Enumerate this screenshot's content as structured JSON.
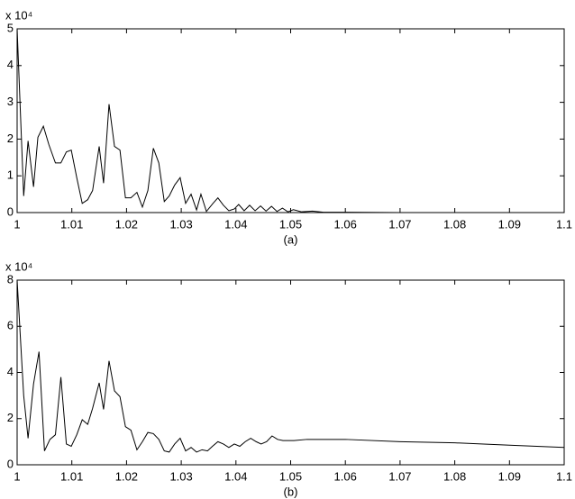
{
  "chart_data": [
    {
      "type": "line",
      "caption": "(a)",
      "multiplier": "x 10⁴",
      "color": "#000000",
      "x": [
        1.0,
        1.0012,
        1.002,
        1.003,
        1.0038,
        1.0048,
        1.0058,
        1.007,
        1.008,
        1.009,
        1.0099,
        1.0109,
        1.0119,
        1.0129,
        1.0138,
        1.015,
        1.0158,
        1.0168,
        1.0178,
        1.0188,
        1.0198,
        1.0208,
        1.0219,
        1.0229,
        1.0239,
        1.0249,
        1.0259,
        1.0269,
        1.0278,
        1.0288,
        1.0298,
        1.0308,
        1.0318,
        1.0328,
        1.0336,
        1.0346,
        1.0358,
        1.0367,
        1.0377,
        1.0387,
        1.0397,
        1.0405,
        1.0415,
        1.0425,
        1.0435,
        1.0445,
        1.0455,
        1.0465,
        1.0475,
        1.0485,
        1.0495,
        1.0505,
        1.052,
        1.054,
        1.056,
        1.06,
        1.07,
        1.08,
        1.09,
        1.1
      ],
      "values": [
        5.0,
        0.45,
        1.95,
        0.7,
        2.05,
        2.35,
        1.85,
        1.35,
        1.35,
        1.65,
        1.7,
        0.95,
        0.25,
        0.35,
        0.6,
        1.8,
        0.8,
        2.95,
        1.8,
        1.7,
        0.4,
        0.4,
        0.55,
        0.15,
        0.6,
        1.75,
        1.35,
        0.3,
        0.45,
        0.75,
        0.95,
        0.25,
        0.5,
        0.07,
        0.5,
        0.03,
        0.25,
        0.4,
        0.2,
        0.05,
        0.1,
        0.22,
        0.05,
        0.2,
        0.05,
        0.18,
        0.04,
        0.17,
        0.03,
        0.12,
        0.02,
        0.08,
        0.02,
        0.04,
        0.01,
        0.01,
        0.0,
        0.0,
        0.0,
        0.0
      ],
      "xlim": [
        1.0,
        1.1
      ],
      "xticks": [
        1,
        1.01,
        1.02,
        1.03,
        1.04,
        1.05,
        1.06,
        1.07,
        1.08,
        1.09,
        1.1
      ],
      "ylim": [
        0,
        5
      ],
      "yticks": [
        0,
        1,
        2,
        3,
        4,
        5
      ]
    },
    {
      "type": "line",
      "caption": "(b)",
      "multiplier": "x 10⁴",
      "color": "#000000",
      "x": [
        1.0,
        1.0012,
        1.002,
        1.003,
        1.004,
        1.005,
        1.006,
        1.007,
        1.008,
        1.009,
        1.0099,
        1.0109,
        1.0119,
        1.0129,
        1.0138,
        1.015,
        1.0158,
        1.0168,
        1.0178,
        1.0188,
        1.0198,
        1.0208,
        1.0219,
        1.0229,
        1.0239,
        1.0249,
        1.0259,
        1.0269,
        1.0278,
        1.0288,
        1.0298,
        1.0308,
        1.0318,
        1.0328,
        1.0338,
        1.0348,
        1.0357,
        1.0367,
        1.0377,
        1.0387,
        1.0397,
        1.0407,
        1.0417,
        1.0427,
        1.0437,
        1.0446,
        1.0456,
        1.0466,
        1.0476,
        1.0486,
        1.0506,
        1.053,
        1.06,
        1.07,
        1.08,
        1.09,
        1.1
      ],
      "values": [
        8.0,
        3.0,
        1.15,
        3.5,
        4.9,
        0.6,
        1.1,
        1.3,
        3.8,
        0.9,
        0.8,
        1.3,
        1.95,
        1.75,
        2.45,
        3.55,
        2.4,
        4.5,
        3.2,
        2.95,
        1.65,
        1.5,
        0.65,
        1.0,
        1.4,
        1.35,
        1.1,
        0.6,
        0.55,
        0.9,
        1.15,
        0.6,
        0.75,
        0.55,
        0.65,
        0.6,
        0.8,
        1.0,
        0.9,
        0.75,
        0.9,
        0.8,
        1.0,
        1.15,
        1.0,
        0.9,
        1.0,
        1.25,
        1.1,
        1.05,
        1.05,
        1.1,
        1.1,
        1.0,
        0.95,
        0.85,
        0.75
      ],
      "xlim": [
        1.0,
        1.1
      ],
      "xticks": [
        1,
        1.01,
        1.02,
        1.03,
        1.04,
        1.05,
        1.06,
        1.07,
        1.08,
        1.09,
        1.1
      ],
      "ylim": [
        0,
        8
      ],
      "yticks": [
        0,
        2,
        4,
        6,
        8
      ]
    }
  ]
}
